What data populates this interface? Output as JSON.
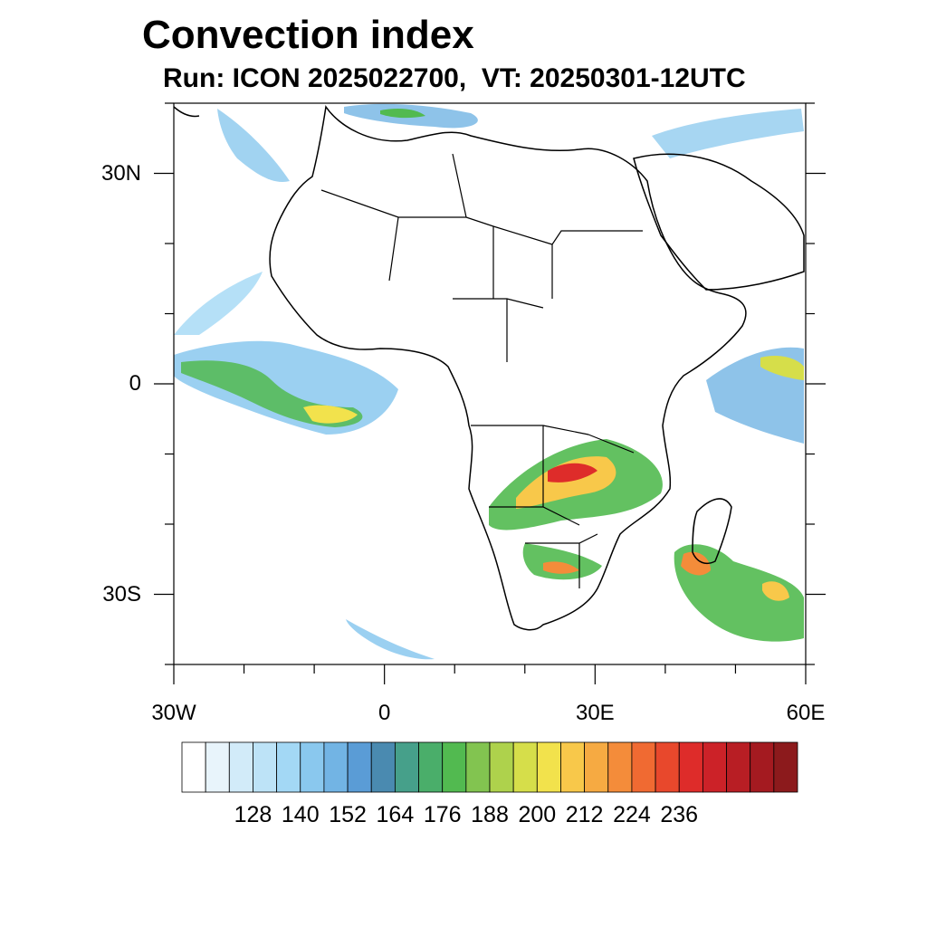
{
  "title": "Convection index",
  "subtitle": "Run: ICON 2025022700,  VT: 20250301-12UTC",
  "map": {
    "lon_range": [
      -30,
      60
    ],
    "lat_range": [
      -40,
      40
    ],
    "lon_ticks": [
      {
        "value": -30,
        "label": "30W"
      },
      {
        "value": 0,
        "label": "0"
      },
      {
        "value": 30,
        "label": "30E"
      },
      {
        "value": 60,
        "label": "60E"
      }
    ],
    "lat_ticks": [
      {
        "value": 30,
        "label": "30N"
      },
      {
        "value": 0,
        "label": "0"
      },
      {
        "value": -30,
        "label": "30S"
      }
    ]
  },
  "colorbar": {
    "labels": [
      "128",
      "140",
      "152",
      "164",
      "176",
      "188",
      "200",
      "212",
      "224",
      "236"
    ],
    "colors": [
      "#ffffff",
      "#e8f4fb",
      "#d2ebf9",
      "#bde3f7",
      "#a3d8f5",
      "#8ac8ee",
      "#72b4e4",
      "#5a9cd6",
      "#4a8ab0",
      "#46a08a",
      "#4aae6a",
      "#52ba50",
      "#82c450",
      "#aed24c",
      "#d6de4a",
      "#f2e24c",
      "#f8c84a",
      "#f6aa42",
      "#f48c3a",
      "#f06a32",
      "#e8482c",
      "#de2c2a",
      "#cc2228",
      "#b81e24",
      "#a41a20",
      "#8c1a1c"
    ]
  },
  "colors": {
    "background": "#ffffff",
    "coastline": "#000000"
  }
}
